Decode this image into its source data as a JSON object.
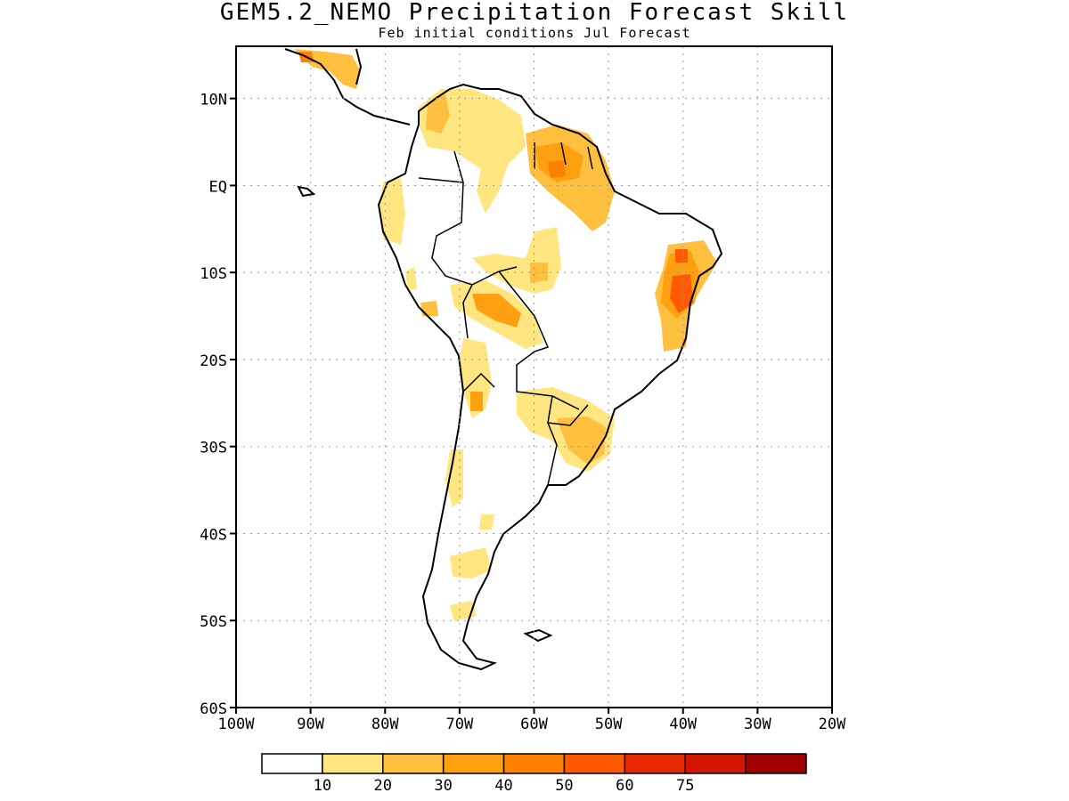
{
  "map": {
    "title": "GEM5.2_NEMO Precipitation Forecast Skill",
    "subtitle": "Feb initial conditions  Jul Forecast",
    "lat_ticks": [
      {
        "label": "10N",
        "lat": 10
      },
      {
        "label": "EQ",
        "lat": 0
      },
      {
        "label": "10S",
        "lat": -10
      },
      {
        "label": "20S",
        "lat": -20
      },
      {
        "label": "30S",
        "lat": -30
      },
      {
        "label": "40S",
        "lat": -40
      },
      {
        "label": "50S",
        "lat": -50
      },
      {
        "label": "60S",
        "lat": -60
      }
    ],
    "lon_ticks": [
      {
        "label": "100W",
        "lon": -100
      },
      {
        "label": "90W",
        "lon": -90
      },
      {
        "label": "80W",
        "lon": -80
      },
      {
        "label": "70W",
        "lon": -70
      },
      {
        "label": "60W",
        "lon": -60
      },
      {
        "label": "50W",
        "lon": -50
      },
      {
        "label": "40W",
        "lon": -40
      },
      {
        "label": "30W",
        "lon": -30
      },
      {
        "label": "20W",
        "lon": -20
      }
    ],
    "extent": {
      "lon_min": -100,
      "lon_max": -20,
      "lat_min": -60,
      "lat_max": 16
    },
    "grid": true
  },
  "legend": {
    "colors": [
      "#ffffff",
      "#ffe680",
      "#ffc040",
      "#ffa010",
      "#ff8000",
      "#ff5a00",
      "#e62800",
      "#d21400",
      "#a00000"
    ],
    "labels": [
      "10",
      "20",
      "30",
      "40",
      "50",
      "60",
      "75"
    ]
  }
}
